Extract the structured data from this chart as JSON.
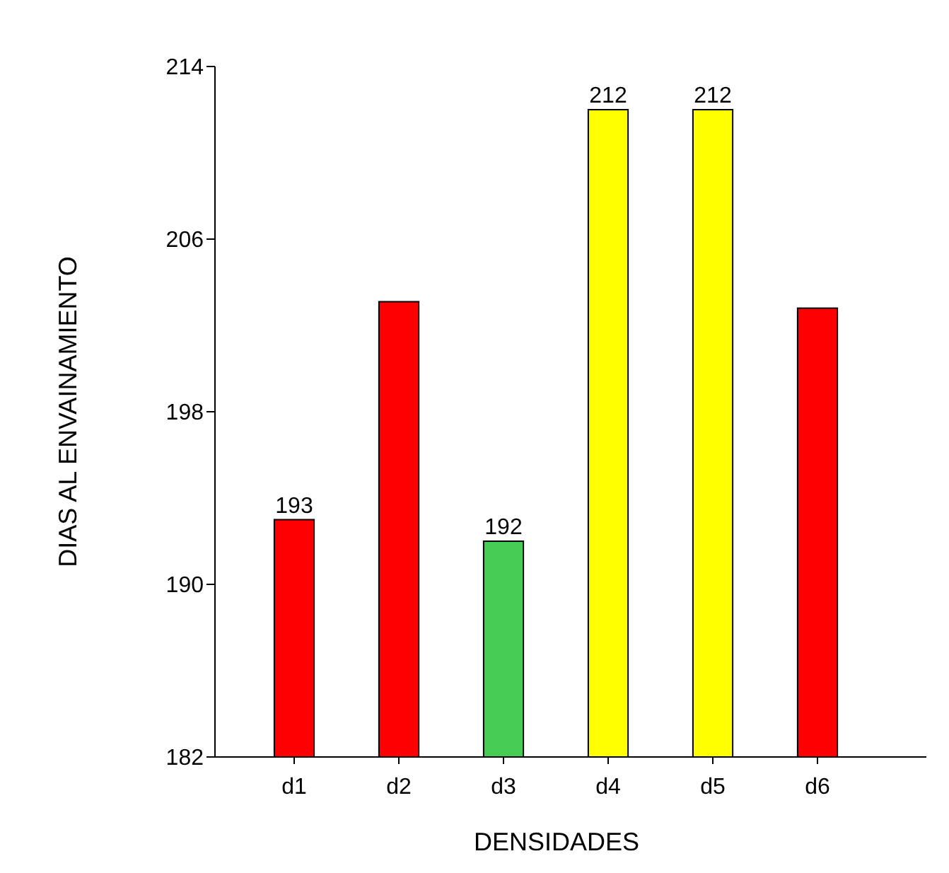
{
  "chart_data": {
    "type": "bar",
    "xlabel": "DENSIDADES",
    "ylabel": "DIAS AL ENVAINAMIENTO",
    "categories": [
      "d1",
      "d2",
      "d3",
      "d4",
      "d5",
      "d6"
    ],
    "values": [
      193,
      203.1,
      192,
      212,
      212,
      202.8
    ],
    "colors": [
      "#ff0000",
      "#ff0000",
      "#44cc55",
      "#ffff00",
      "#ffff00",
      "#ff0000"
    ],
    "value_labels": [
      "193",
      null,
      "192",
      "212",
      "212",
      null
    ],
    "ylim": [
      182,
      214
    ],
    "yticks": [
      182,
      190,
      198,
      206,
      214
    ],
    "grid": false
  }
}
